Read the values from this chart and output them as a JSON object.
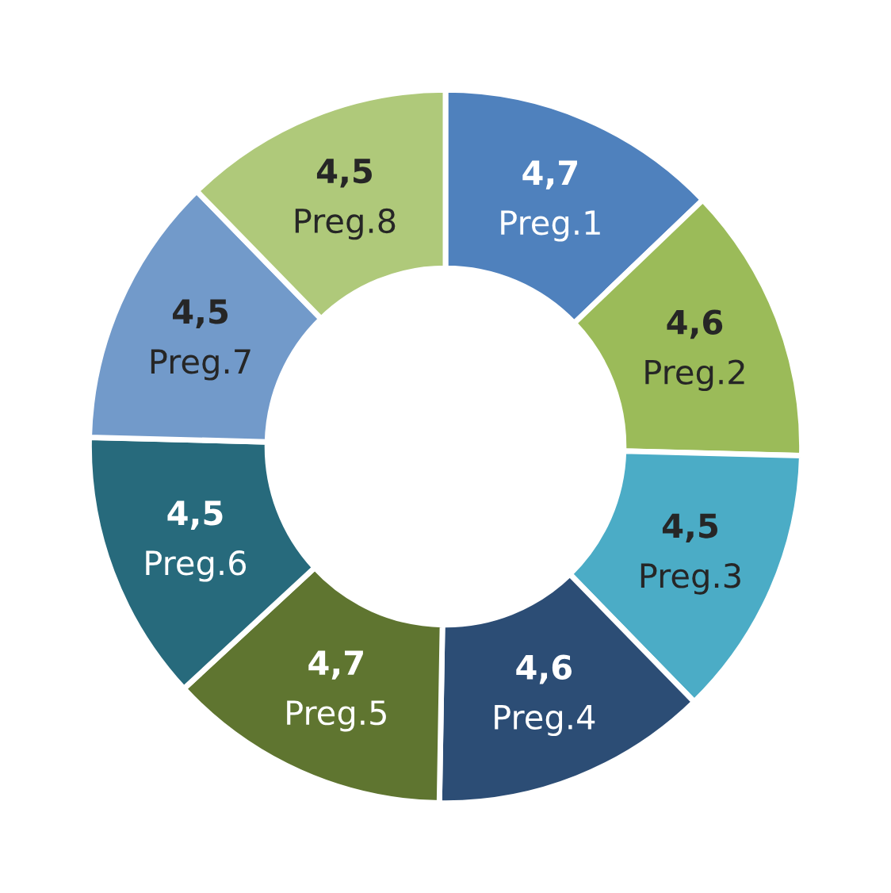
{
  "chart_data": {
    "type": "donut",
    "categories": [
      "Preg.1",
      "Preg.2",
      "Preg.3",
      "Preg.4",
      "Preg.5",
      "Preg.6",
      "Preg.7",
      "Preg.8"
    ],
    "values": [
      4.7,
      4.6,
      4.5,
      4.6,
      4.7,
      4.5,
      4.5,
      4.5
    ],
    "value_labels": [
      "4,7",
      "4,6",
      "4,5",
      "4,6",
      "4,7",
      "4,5",
      "4,5",
      "4,5"
    ],
    "colors": [
      "#4f81bd",
      "#9bbb59",
      "#4bacc6",
      "#2c4d75",
      "#5f7530",
      "#276a7c",
      "#729aca",
      "#afc97a"
    ],
    "legend": false
  }
}
